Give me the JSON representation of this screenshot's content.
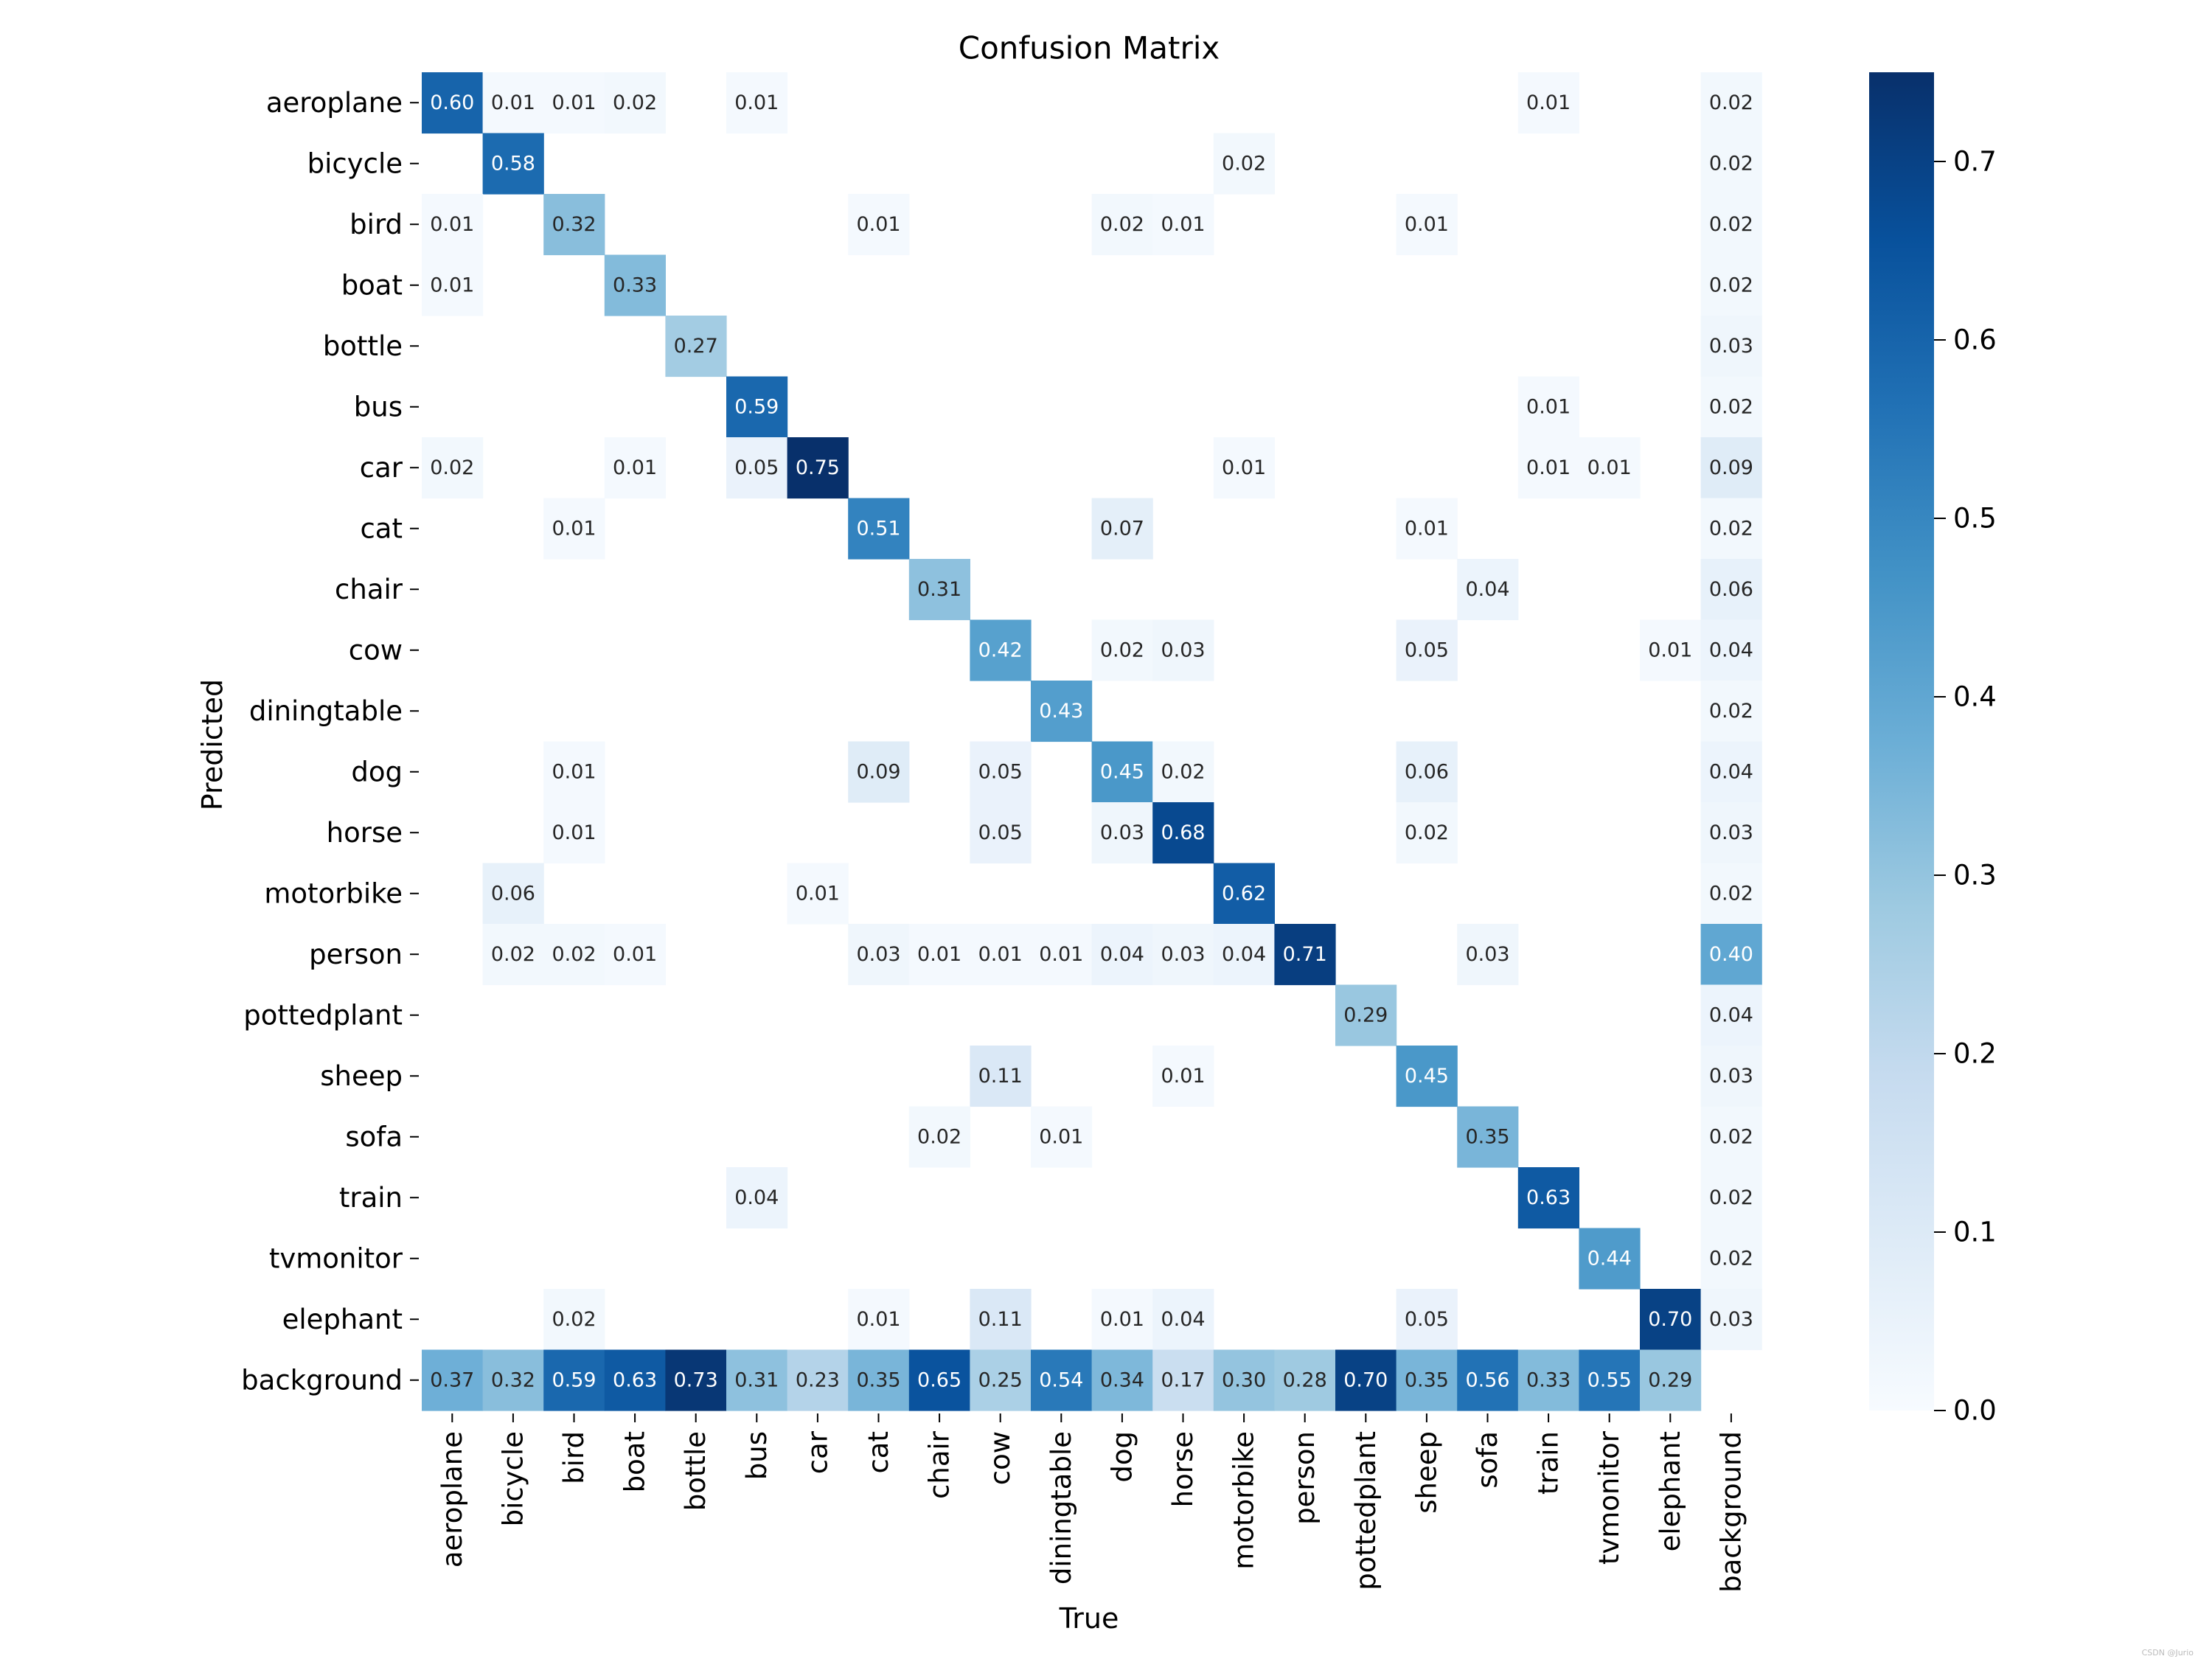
{
  "chart_data": {
    "type": "heatmap",
    "title": "Confusion Matrix",
    "xlabel": "True",
    "ylabel": "Predicted",
    "x_categories": [
      "aeroplane",
      "bicycle",
      "bird",
      "boat",
      "bottle",
      "bus",
      "car",
      "cat",
      "chair",
      "cow",
      "diningtable",
      "dog",
      "horse",
      "motorbike",
      "person",
      "pottedplant",
      "sheep",
      "sofa",
      "train",
      "tvmonitor",
      "elephant",
      "background"
    ],
    "y_categories": [
      "aeroplane",
      "bicycle",
      "bird",
      "boat",
      "bottle",
      "bus",
      "car",
      "cat",
      "chair",
      "cow",
      "diningtable",
      "dog",
      "horse",
      "motorbike",
      "person",
      "pottedplant",
      "sheep",
      "sofa",
      "train",
      "tvmonitor",
      "elephant",
      "background"
    ],
    "values": [
      [
        0.6,
        0.01,
        0.01,
        0.02,
        null,
        0.01,
        null,
        null,
        null,
        null,
        null,
        null,
        null,
        null,
        null,
        null,
        null,
        null,
        0.01,
        null,
        null,
        0.02
      ],
      [
        null,
        0.58,
        null,
        null,
        null,
        null,
        null,
        null,
        null,
        null,
        null,
        null,
        null,
        0.02,
        null,
        null,
        null,
        null,
        null,
        null,
        null,
        0.02
      ],
      [
        0.01,
        null,
        0.32,
        null,
        null,
        null,
        null,
        0.01,
        null,
        null,
        null,
        0.02,
        0.01,
        null,
        null,
        null,
        0.01,
        null,
        null,
        null,
        null,
        0.02
      ],
      [
        0.01,
        null,
        null,
        0.33,
        null,
        null,
        null,
        null,
        null,
        null,
        null,
        null,
        null,
        null,
        null,
        null,
        null,
        null,
        null,
        null,
        null,
        0.02
      ],
      [
        null,
        null,
        null,
        null,
        0.27,
        null,
        null,
        null,
        null,
        null,
        null,
        null,
        null,
        null,
        null,
        null,
        null,
        null,
        null,
        null,
        null,
        0.03
      ],
      [
        null,
        null,
        null,
        null,
        null,
        0.59,
        null,
        null,
        null,
        null,
        null,
        null,
        null,
        null,
        null,
        null,
        null,
        null,
        0.01,
        null,
        null,
        0.02
      ],
      [
        0.02,
        null,
        null,
        0.01,
        null,
        0.05,
        0.75,
        null,
        null,
        null,
        null,
        null,
        null,
        0.01,
        null,
        null,
        null,
        null,
        0.01,
        0.01,
        null,
        0.09
      ],
      [
        null,
        null,
        0.01,
        null,
        null,
        null,
        null,
        0.51,
        null,
        null,
        null,
        0.07,
        null,
        null,
        null,
        null,
        0.01,
        null,
        null,
        null,
        null,
        0.02
      ],
      [
        null,
        null,
        null,
        null,
        null,
        null,
        null,
        null,
        0.31,
        null,
        null,
        null,
        null,
        null,
        null,
        null,
        null,
        0.04,
        null,
        null,
        null,
        0.06
      ],
      [
        null,
        null,
        null,
        null,
        null,
        null,
        null,
        null,
        null,
        0.42,
        null,
        0.02,
        0.03,
        null,
        null,
        null,
        0.05,
        null,
        null,
        null,
        0.01,
        0.04
      ],
      [
        null,
        null,
        null,
        null,
        null,
        null,
        null,
        null,
        null,
        null,
        0.43,
        null,
        null,
        null,
        null,
        null,
        null,
        null,
        null,
        null,
        null,
        0.02
      ],
      [
        null,
        null,
        0.01,
        null,
        null,
        null,
        null,
        0.09,
        null,
        0.05,
        null,
        0.45,
        0.02,
        null,
        null,
        null,
        0.06,
        null,
        null,
        null,
        null,
        0.04
      ],
      [
        null,
        null,
        0.01,
        null,
        null,
        null,
        null,
        null,
        null,
        0.05,
        null,
        0.03,
        0.68,
        null,
        null,
        null,
        0.02,
        null,
        null,
        null,
        null,
        0.03
      ],
      [
        null,
        0.06,
        null,
        null,
        null,
        null,
        0.01,
        null,
        null,
        null,
        null,
        null,
        null,
        0.62,
        null,
        null,
        null,
        null,
        null,
        null,
        null,
        0.02
      ],
      [
        null,
        0.02,
        0.02,
        0.01,
        null,
        null,
        null,
        0.03,
        0.01,
        0.01,
        0.01,
        0.04,
        0.03,
        0.04,
        0.71,
        null,
        null,
        0.03,
        null,
        null,
        null,
        0.4
      ],
      [
        null,
        null,
        null,
        null,
        null,
        null,
        null,
        null,
        null,
        null,
        null,
        null,
        null,
        null,
        null,
        0.29,
        null,
        null,
        null,
        null,
        null,
        0.04
      ],
      [
        null,
        null,
        null,
        null,
        null,
        null,
        null,
        null,
        null,
        0.11,
        null,
        null,
        0.01,
        null,
        null,
        null,
        0.45,
        null,
        null,
        null,
        null,
        0.03
      ],
      [
        null,
        null,
        null,
        null,
        null,
        null,
        null,
        null,
        0.02,
        null,
        0.01,
        null,
        null,
        null,
        null,
        null,
        null,
        0.35,
        null,
        null,
        null,
        0.02
      ],
      [
        null,
        null,
        null,
        null,
        null,
        0.04,
        null,
        null,
        null,
        null,
        null,
        null,
        null,
        null,
        null,
        null,
        null,
        null,
        0.63,
        null,
        null,
        0.02
      ],
      [
        null,
        null,
        null,
        null,
        null,
        null,
        null,
        null,
        null,
        null,
        null,
        null,
        null,
        null,
        null,
        null,
        null,
        null,
        null,
        0.44,
        null,
        0.02
      ],
      [
        null,
        null,
        0.02,
        null,
        null,
        null,
        null,
        0.01,
        null,
        0.11,
        null,
        0.01,
        0.04,
        null,
        null,
        null,
        0.05,
        null,
        null,
        null,
        0.7,
        0.03
      ],
      [
        0.37,
        0.32,
        0.59,
        0.63,
        0.73,
        0.31,
        0.23,
        0.35,
        0.65,
        0.25,
        0.54,
        0.34,
        0.17,
        0.3,
        0.28,
        0.7,
        0.35,
        0.56,
        0.33,
        0.55,
        0.29,
        null
      ]
    ],
    "colorbar": {
      "range": [
        0,
        0.75
      ],
      "ticks": [
        "0.0",
        "0.1",
        "0.2",
        "0.3",
        "0.4",
        "0.5",
        "0.6",
        "0.7"
      ],
      "colormap": "Blues"
    },
    "grid": false,
    "legend": "colorbar-right"
  },
  "watermark": "CSDN @Jurio"
}
